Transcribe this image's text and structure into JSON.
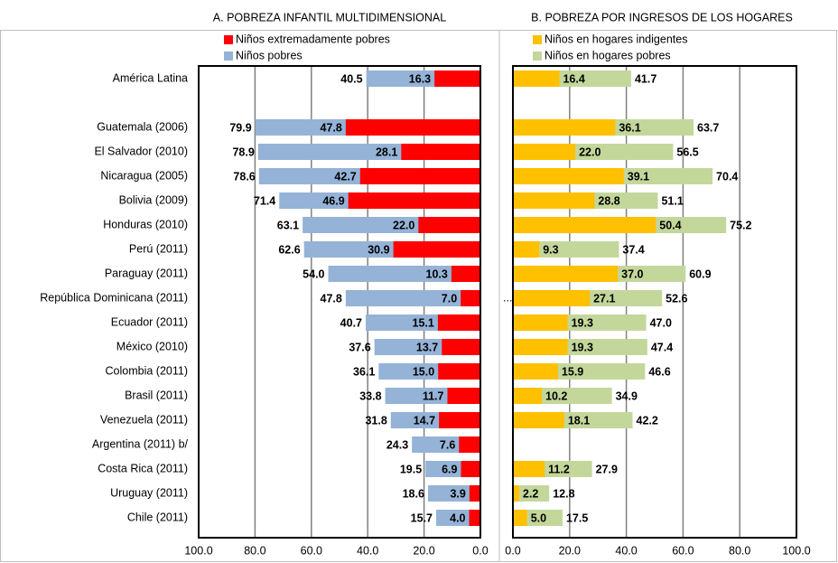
{
  "chart_data": [
    {
      "type": "bar",
      "orientation": "horizontal",
      "overlap": true,
      "title": "A. POBREZA INFANTIL MULTIDIMENSIONAL",
      "categories": [
        "América Latina",
        null,
        "Guatemala (2006)",
        "El Salvador (2010)",
        "Nicaragua (2005)",
        "Bolivia (2009)",
        "Honduras (2010)",
        "Perú (2011)",
        "Paraguay (2011)",
        "República Dominicana (2011)",
        "Ecuador (2011)",
        "México (2010)",
        "Colombia (2011)",
        "Brasil (2011)",
        "Venezuela (2011)",
        "Argentina (2011) b/",
        "Costa Rica (2011)",
        "Uruguay (2011)",
        "Chile (2011)"
      ],
      "series": [
        {
          "name": "Niños extremadamente pobres",
          "color": "#ff0000",
          "values": [
            16.3,
            null,
            47.8,
            28.1,
            42.7,
            46.9,
            22.0,
            30.9,
            10.3,
            7.0,
            15.1,
            13.7,
            15.0,
            11.7,
            14.7,
            7.6,
            6.9,
            3.9,
            4.0
          ],
          "value_labels": [
            "16.3",
            null,
            "47.8",
            "28.1",
            "42.7",
            "46.9",
            "22.0",
            "30.9",
            "10.3",
            "7.0",
            "15.1",
            "13.7",
            "15.0",
            "11.7",
            "14.7",
            "7.6",
            "6.9",
            "3.9",
            "4.0"
          ]
        },
        {
          "name": "Niños pobres",
          "color": "#95b3d7",
          "values": [
            40.5,
            null,
            79.9,
            78.9,
            78.6,
            71.4,
            63.1,
            62.6,
            54.0,
            47.8,
            40.7,
            37.6,
            36.1,
            33.8,
            31.8,
            24.3,
            19.5,
            18.6,
            15.7
          ],
          "value_labels": [
            "40.5",
            null,
            "79.9",
            "78.9",
            "78.6",
            "71.4",
            "63.1",
            "62.6",
            "54.0",
            "47.8",
            "40.7",
            "37.6",
            "36.1",
            "33.8",
            "31.8",
            "24.3",
            "19.5",
            "18.6",
            "15.7"
          ]
        }
      ],
      "xlim": [
        100,
        0
      ],
      "xticks": [
        {
          "value": 100,
          "label": "100.0"
        },
        {
          "value": 80,
          "label": "80.0"
        },
        {
          "value": 60,
          "label": "60.0"
        },
        {
          "value": 40,
          "label": "40.0"
        },
        {
          "value": 20,
          "label": "20.0"
        },
        {
          "value": 0,
          "label": "0.0"
        }
      ],
      "grid": true
    },
    {
      "type": "bar",
      "orientation": "horizontal",
      "overlap": true,
      "title": "B. POBREZA POR INGRESOS DE LOS HOGARES",
      "annotation": "...",
      "series": [
        {
          "name": "Niños en hogares indigentes",
          "color": "#ffc000",
          "values": [
            16.4,
            null,
            36.1,
            22.0,
            39.1,
            28.8,
            50.4,
            9.3,
            37.0,
            27.1,
            19.3,
            19.3,
            15.9,
            10.2,
            18.1,
            null,
            11.2,
            2.2,
            5.0
          ],
          "value_labels": [
            "16.4",
            null,
            "36.1",
            "22.0",
            "39.1",
            "28.8",
            "50.4",
            "9.3",
            "37.0",
            "27.1",
            "19.3",
            "19.3",
            "15.9",
            "10.2",
            "18.1",
            null,
            "11.2",
            "2.2",
            "5.0"
          ]
        },
        {
          "name": "Niños en hogares pobres",
          "color": "#c4d79b",
          "values": [
            41.7,
            null,
            63.7,
            56.5,
            70.4,
            51.1,
            75.2,
            37.4,
            60.9,
            52.6,
            47.0,
            47.4,
            46.6,
            34.9,
            42.2,
            null,
            27.9,
            12.8,
            17.5
          ],
          "value_labels": [
            "41.7",
            null,
            "63.7",
            "56.5",
            "70.4",
            "51.1",
            "75.2",
            "37.4",
            "60.9",
            "52.6",
            "47.0",
            "47.4",
            "46.6",
            "34.9",
            "42.2",
            null,
            "27.9",
            "12.8",
            "17.5"
          ]
        }
      ],
      "xlim": [
        0,
        100
      ],
      "xticks": [
        {
          "value": 0,
          "label": "0.0"
        },
        {
          "value": 20,
          "label": "20.0"
        },
        {
          "value": 40,
          "label": "40.0"
        },
        {
          "value": 60,
          "label": "60.0"
        },
        {
          "value": 80,
          "label": "80.0"
        },
        {
          "value": 100,
          "label": "100.0"
        }
      ],
      "grid": true
    }
  ]
}
